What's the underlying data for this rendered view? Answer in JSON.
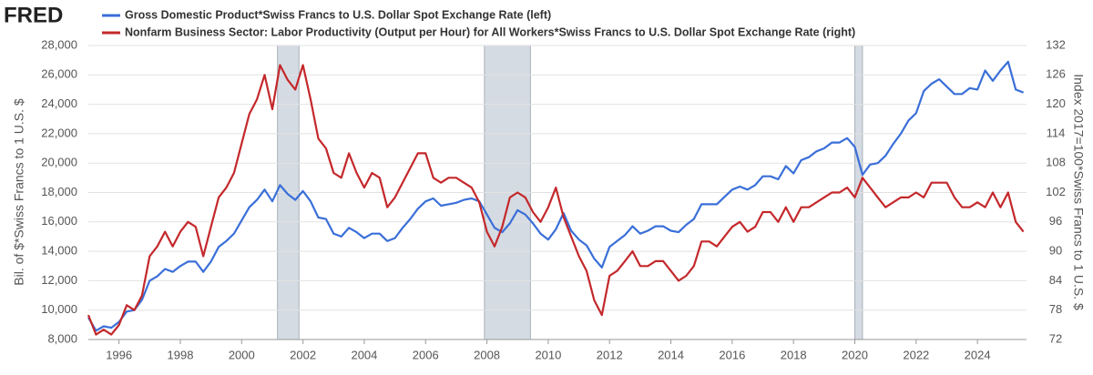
{
  "logo": "FRED",
  "chart_data": {
    "type": "line",
    "ylabel": "Bil. of $*Swiss Francs to 1 U.S. $",
    "y2label": "Index 2017=100*Swiss Francs to 1 U.S. $",
    "x": [
      1995,
      1995.25,
      1995.5,
      1995.75,
      1996,
      1996.25,
      1996.5,
      1996.75,
      1997,
      1997.25,
      1997.5,
      1997.75,
      1998,
      1998.25,
      1998.5,
      1998.75,
      1999,
      1999.25,
      1999.5,
      1999.75,
      2000,
      2000.25,
      2000.5,
      2000.75,
      2001,
      2001.25,
      2001.5,
      2001.75,
      2002,
      2002.25,
      2002.5,
      2002.75,
      2003,
      2003.25,
      2003.5,
      2003.75,
      2004,
      2004.25,
      2004.5,
      2004.75,
      2005,
      2005.25,
      2005.5,
      2005.75,
      2006,
      2006.25,
      2006.5,
      2006.75,
      2007,
      2007.25,
      2007.5,
      2007.75,
      2008,
      2008.25,
      2008.5,
      2008.75,
      2009,
      2009.25,
      2009.5,
      2009.75,
      2010,
      2010.25,
      2010.5,
      2010.75,
      2011,
      2011.25,
      2011.5,
      2011.75,
      2012,
      2012.25,
      2012.5,
      2012.75,
      2013,
      2013.25,
      2013.5,
      2013.75,
      2014,
      2014.25,
      2014.5,
      2014.75,
      2015,
      2015.25,
      2015.5,
      2015.75,
      2016,
      2016.25,
      2016.5,
      2016.75,
      2017,
      2017.25,
      2017.5,
      2017.75,
      2018,
      2018.25,
      2018.5,
      2018.75,
      2019,
      2019.25,
      2019.5,
      2019.75,
      2020,
      2020.25,
      2020.5,
      2020.75,
      2021,
      2021.25,
      2021.5,
      2021.75,
      2022,
      2022.25,
      2022.5,
      2022.75,
      2023,
      2023.25,
      2023.5,
      2023.75,
      2024,
      2024.25,
      2024.5,
      2024.75,
      2025,
      2025.25,
      2025.5
    ],
    "series": [
      {
        "name": "Gross Domestic Product*Swiss Francs to U.S. Dollar Spot Exchange Rate (left)",
        "color": "#3a6fd8",
        "axis": "y",
        "values": [
          9500,
          8600,
          8900,
          8800,
          9200,
          9900,
          10000,
          10700,
          12000,
          12300,
          12800,
          12600,
          13000,
          13300,
          13300,
          12600,
          13300,
          14300,
          14700,
          15200,
          16100,
          17000,
          17500,
          18200,
          17400,
          18500,
          17900,
          17500,
          18100,
          17400,
          16300,
          16200,
          15200,
          15000,
          15600,
          15300,
          14900,
          15200,
          15200,
          14700,
          14900,
          15600,
          16200,
          16900,
          17400,
          17600,
          17100,
          17200,
          17300,
          17500,
          17600,
          17400,
          16500,
          15600,
          15300,
          15900,
          16800,
          16500,
          15900,
          15200,
          14800,
          15500,
          16600,
          15400,
          14800,
          14400,
          13500,
          12900,
          14300,
          14700,
          15100,
          15700,
          15200,
          15400,
          15700,
          15700,
          15400,
          15300,
          15800,
          16200,
          17200,
          17200,
          17200,
          17700,
          18200,
          18400,
          18200,
          18500,
          19100,
          19100,
          18900,
          19800,
          19300,
          20200,
          20400,
          20800,
          21000,
          21400,
          21400,
          21700,
          21100,
          19200,
          19900,
          20000,
          20500,
          21300,
          22000,
          22900,
          23400,
          24900,
          25400,
          25700,
          25200,
          24700,
          24700,
          25100,
          25000,
          26300,
          25600,
          26300,
          26900,
          25000,
          24800
        ]
      },
      {
        "name": "Nonfarm Business Sector: Labor Productivity (Output per Hour) for All Workers*Swiss Francs to U.S. Dollar Spot Exchange Rate (right)",
        "color": "#c4282b",
        "axis": "y2",
        "values": [
          77,
          73,
          74,
          73,
          75,
          79,
          78,
          81,
          89,
          91,
          94,
          91,
          94,
          96,
          95,
          89,
          95,
          101,
          103,
          106,
          112,
          118,
          121,
          126,
          119,
          128,
          125,
          123,
          128,
          121,
          113,
          111,
          106,
          105,
          110,
          106,
          103,
          106,
          105,
          99,
          101,
          104,
          107,
          110,
          110,
          105,
          104,
          105,
          105,
          104,
          103,
          100,
          94,
          91,
          95,
          101,
          102,
          101,
          98,
          96,
          99,
          103,
          97,
          93,
          89,
          86,
          80,
          77,
          85,
          86,
          88,
          90,
          87,
          87,
          88,
          88,
          86,
          84,
          85,
          87,
          92,
          92,
          91,
          93,
          95,
          96,
          94,
          95,
          98,
          98,
          96,
          99,
          96,
          99,
          99,
          100,
          101,
          102,
          102,
          103,
          101,
          105,
          103,
          101,
          99,
          100,
          101,
          101,
          102,
          101,
          104,
          104,
          104,
          101,
          99,
          99,
          100,
          99,
          102,
          99,
          102,
          96,
          94
        ]
      }
    ],
    "recessions": [
      [
        2001.17,
        2001.87
      ],
      [
        2007.92,
        2009.42
      ],
      [
        2020.0,
        2020.25
      ]
    ],
    "xlim": [
      1995,
      2025.6
    ],
    "xticks": [
      1996,
      1998,
      2000,
      2002,
      2004,
      2006,
      2008,
      2010,
      2012,
      2014,
      2016,
      2018,
      2020,
      2022,
      2024
    ],
    "ylim": [
      8000,
      28000
    ],
    "yticks": [
      {
        "value": 8000,
        "label": "8,000"
      },
      {
        "value": 10000,
        "label": "10,000"
      },
      {
        "value": 12000,
        "label": "12,000"
      },
      {
        "value": 14000,
        "label": "14,000"
      },
      {
        "value": 16000,
        "label": "16,000"
      },
      {
        "value": 18000,
        "label": "18,000"
      },
      {
        "value": 20000,
        "label": "20,000"
      },
      {
        "value": 22000,
        "label": "22,000"
      },
      {
        "value": 24000,
        "label": "24,000"
      },
      {
        "value": 26000,
        "label": "26,000"
      },
      {
        "value": 28000,
        "label": "28,000"
      }
    ],
    "y2lim": [
      72,
      132
    ],
    "y2ticks": [
      72,
      78,
      84,
      90,
      96,
      102,
      108,
      114,
      120,
      126,
      132
    ],
    "grid": true
  }
}
